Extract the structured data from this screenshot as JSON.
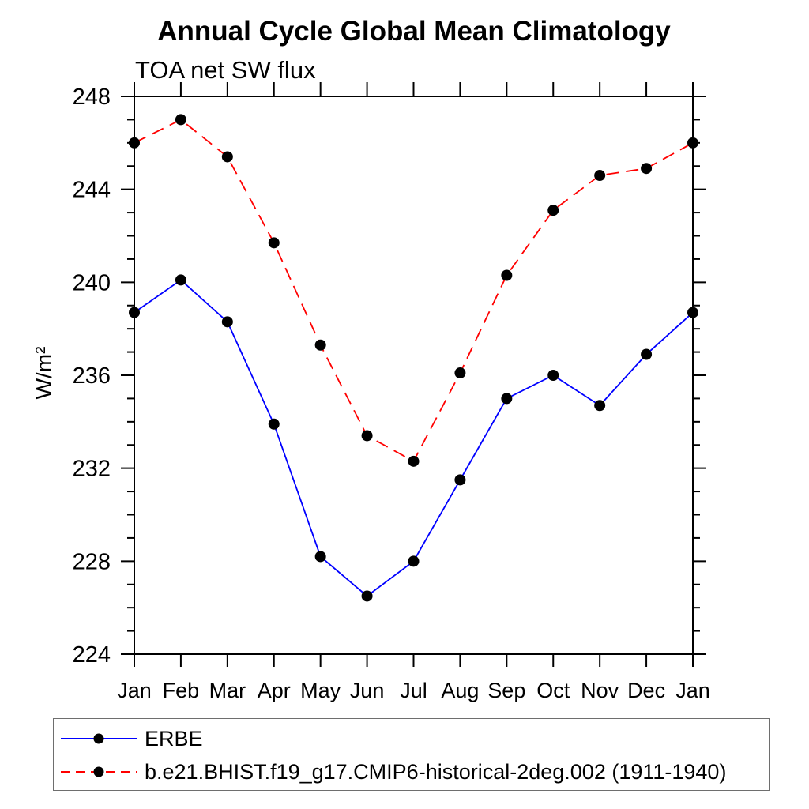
{
  "chart_data": {
    "type": "line",
    "title": "Annual Cycle Global Mean Climatology",
    "subtitle": "TOA net SW flux",
    "ylabel": "W/m²",
    "categories": [
      "Jan",
      "Feb",
      "Mar",
      "Apr",
      "May",
      "Jun",
      "Jul",
      "Aug",
      "Sep",
      "Oct",
      "Nov",
      "Dec",
      "Jan"
    ],
    "series": [
      {
        "name": "ERBE",
        "color": "#0000ff",
        "line_style": "solid",
        "marker": "filled-circle",
        "marker_color": "#000000",
        "values": [
          238.7,
          240.1,
          238.3,
          233.9,
          228.2,
          226.5,
          228.0,
          231.5,
          235.0,
          236.0,
          234.7,
          236.9,
          238.7
        ]
      },
      {
        "name": "b.e21.BHIST.f19_g17.CMIP6-historical-2deg.002 (1911-1940)",
        "color": "#ff0000",
        "line_style": "dashed",
        "marker": "filled-circle",
        "marker_color": "#000000",
        "values": [
          246.0,
          247.0,
          245.4,
          241.7,
          237.3,
          233.4,
          232.3,
          236.1,
          240.3,
          243.1,
          244.6,
          244.9,
          246.0
        ]
      }
    ],
    "ylim": [
      224,
      248
    ],
    "yticks_major": [
      224,
      228,
      232,
      236,
      240,
      244,
      248
    ],
    "ytick_minor_interval": 1,
    "grid": false,
    "frame_color": "#000000",
    "legend_position": "bottom-left-box"
  }
}
